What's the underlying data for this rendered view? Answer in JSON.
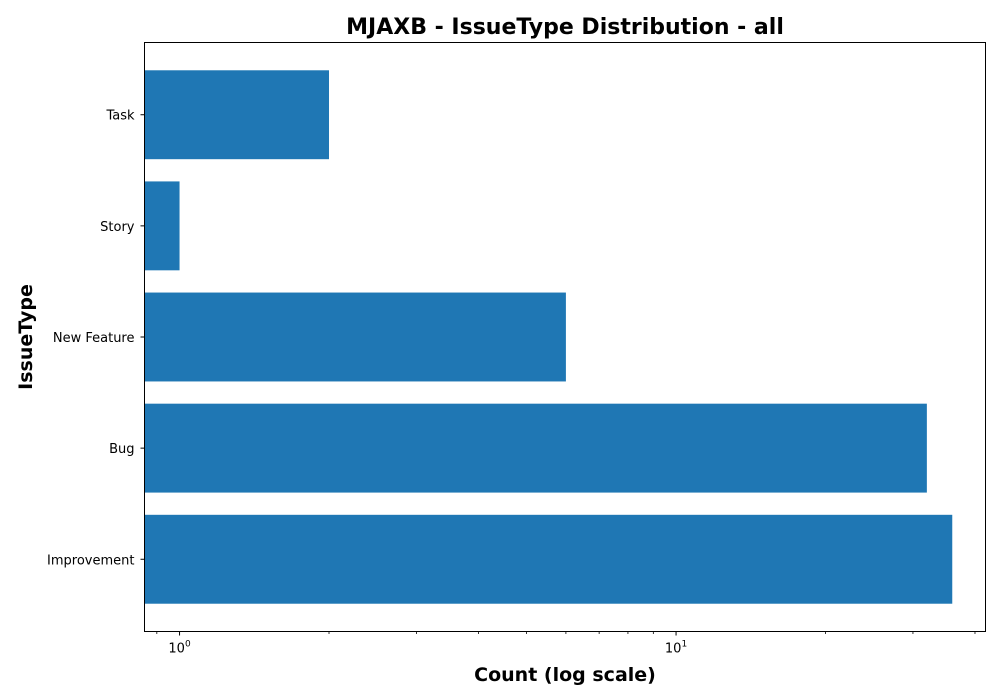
{
  "chart_data": {
    "type": "bar",
    "orientation": "horizontal",
    "title": "MJAXB - IssueType Distribution - all",
    "xlabel": "Count (log scale)",
    "ylabel": "IssueType",
    "x_scale": "log",
    "xlim": [
      0.85,
      42
    ],
    "x_major_ticks": [
      {
        "value": 1,
        "base": "10",
        "exp": "0"
      },
      {
        "value": 10,
        "base": "10",
        "exp": "1"
      }
    ],
    "categories": [
      "Improvement",
      "Bug",
      "New Feature",
      "Story",
      "Task"
    ],
    "values": [
      36,
      32,
      6,
      1,
      2
    ],
    "bar_color": "#1f77b4",
    "grid": false,
    "legend": "none"
  }
}
